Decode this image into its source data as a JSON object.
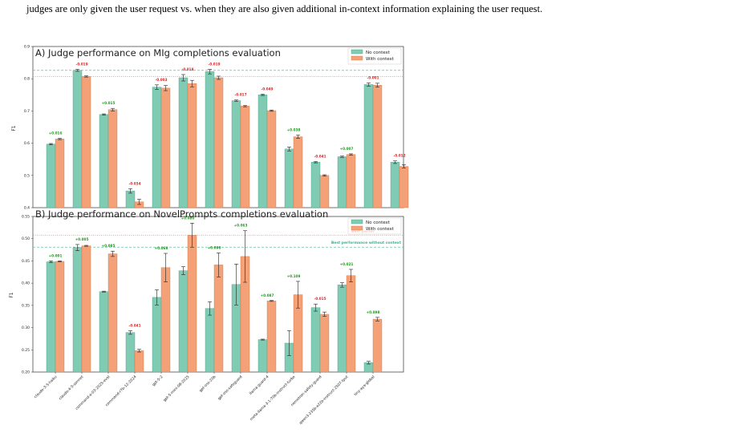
{
  "caption": "judges are only given the user request vs. when they are also given additional in-context information explaining the user request.",
  "colors": {
    "no_context": "#80cbb4",
    "with_context": "#f4a178",
    "pos": "#1a9a1a",
    "neg": "#e02020",
    "best_ctx_line": "#f08060",
    "best_noctx_line": "#60c0a0"
  },
  "chart_data": [
    {
      "type": "bar",
      "title": "A) Judge performance on MIg completions evaluation",
      "xlabel": "",
      "ylabel": "F1",
      "ylim": [
        0.4,
        0.9
      ],
      "yticks": [
        "0.4",
        "0.5",
        "0.6",
        "0.7",
        "0.8",
        "0.9"
      ],
      "legend_position": "top-right",
      "grid": false,
      "best_no_context": 0.826,
      "best_with_context": 0.807,
      "series": [
        {
          "name": "No context",
          "values": [
            0.597,
            0.826,
            0.689,
            0.452,
            0.774,
            0.803,
            0.822,
            0.732,
            0.75,
            0.582,
            0.541,
            0.558,
            0.782,
            0.541
          ],
          "errors": [
            0.002,
            0.003,
            0.002,
            0.007,
            0.007,
            0.01,
            0.007,
            0.002,
            0.002,
            0.006,
            0.002,
            0.002,
            0.005,
            0.004
          ]
        },
        {
          "name": "With context",
          "values": [
            0.613,
            0.807,
            0.704,
            0.418,
            0.771,
            0.785,
            0.803,
            0.715,
            0.701,
            0.62,
            0.5,
            0.565,
            0.78,
            0.528
          ],
          "errors": [
            0.002,
            0.002,
            0.004,
            0.008,
            0.008,
            0.01,
            0.005,
            0.002,
            0.002,
            0.005,
            0.002,
            0.002,
            0.006,
            0.005
          ]
        }
      ],
      "deltas": [
        "+0.016",
        "-0.019",
        "+0.015",
        "-0.034",
        "-0.003",
        "-0.018",
        "-0.019",
        "-0.017",
        "-0.049",
        "+0.038",
        "-0.041",
        "+0.007",
        "-0.001",
        "-0.012"
      ]
    },
    {
      "type": "bar",
      "title": "B) Judge performance on NovelPrompts completions evaluation",
      "xlabel": "",
      "ylabel": "F1",
      "ylim": [
        0.2,
        0.55
      ],
      "yticks": [
        "0.20",
        "0.25",
        "0.30",
        "0.35",
        "0.40",
        "0.45",
        "0.50",
        "0.55"
      ],
      "legend_position": "top-right",
      "grid": false,
      "best_no_context": 0.481,
      "best_with_context": 0.508,
      "best_with_context_label": "Best perfor",
      "best_no_context_label": "Best performance without context",
      "categories": [
        "claude-3-5-haiku",
        "claude-4-5-sonnet",
        "command-a-03-2025-eval",
        "command-r7b-12-2024",
        "gpt-5-2",
        "gpt-5-mini-08-2025",
        "gpt-oss-20b",
        "gpt-oss-safeguard",
        "llama-guard-4",
        "meta-llama-3-1-70b-instruct-turbo",
        "nemotron-safety-guard",
        "qwen3-235b-a22b-instruct-2507-tput",
        "tiny-aya-global"
      ],
      "series": [
        {
          "name": "No context",
          "values": [
            0.448,
            0.48,
            0.381,
            0.289,
            0.368,
            0.428,
            0.343,
            0.397,
            0.273,
            0.265,
            0.345,
            0.396,
            0.221
          ],
          "errors": [
            0.002,
            0.007,
            0.001,
            0.004,
            0.017,
            0.009,
            0.015,
            0.046,
            0.001,
            0.028,
            0.008,
            0.005,
            0.003
          ]
        },
        {
          "name": "With context",
          "values": [
            0.449,
            0.484,
            0.466,
            0.248,
            0.435,
            0.508,
            0.441,
            0.46,
            0.36,
            0.374,
            0.33,
            0.417,
            0.319
          ],
          "errors": [
            0.001,
            0.001,
            0.006,
            0.003,
            0.032,
            0.027,
            0.027,
            0.058,
            0.001,
            0.03,
            0.005,
            0.014,
            0.004
          ]
        }
      ],
      "deltas": [
        "+0.001",
        "+0.005",
        "+0.085",
        "-0.041",
        "+0.068",
        "+0.080",
        "+0.098",
        "+0.063",
        "+0.087",
        "+0.109",
        "-0.015",
        "+0.021",
        "+0.098"
      ]
    }
  ]
}
